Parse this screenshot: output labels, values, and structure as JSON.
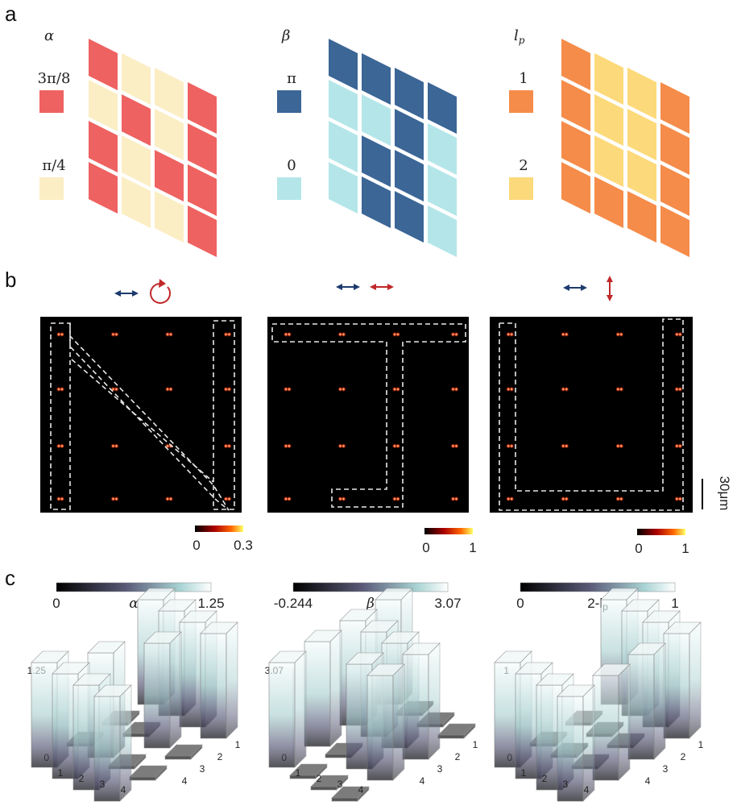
{
  "panel_a": {
    "letter": "a",
    "grids": [
      {
        "symbol": "α",
        "legend": [
          {
            "label": "3π/8",
            "color": "#ee6261"
          },
          {
            "label": "π/4",
            "color": "#fbeec4"
          }
        ],
        "matrix": [
          [
            0,
            1,
            1,
            0
          ],
          [
            1,
            0,
            1,
            0
          ],
          [
            0,
            1,
            0,
            0
          ],
          [
            0,
            1,
            1,
            0
          ]
        ]
      },
      {
        "symbol": "β",
        "legend": [
          {
            "label": "π",
            "color": "#3b6696"
          },
          {
            "label": "0",
            "color": "#b4e6e9"
          }
        ],
        "matrix": [
          [
            0,
            0,
            0,
            0
          ],
          [
            1,
            1,
            0,
            1
          ],
          [
            1,
            0,
            0,
            1
          ],
          [
            1,
            0,
            0,
            1
          ]
        ]
      },
      {
        "symbol": "lp",
        "legend": [
          {
            "label": "1",
            "color": "#f58c4a"
          },
          {
            "label": "2",
            "color": "#fcd97a"
          }
        ],
        "matrix": [
          [
            0,
            1,
            1,
            0
          ],
          [
            0,
            1,
            1,
            0
          ],
          [
            0,
            1,
            1,
            0
          ],
          [
            0,
            0,
            0,
            0
          ]
        ]
      }
    ]
  },
  "panel_b": {
    "letter": "b",
    "scalebar_label": "30μm",
    "colorbars": [
      {
        "min": "0",
        "max": "0.3"
      },
      {
        "min": "0",
        "max": "1"
      },
      {
        "min": "0",
        "max": "1"
      }
    ],
    "polarization_icons": [
      "double-arrow-blue circular-red",
      "double-arrow-blue double-arrow-red",
      "double-arrow-blue vertical-arrow-red"
    ]
  },
  "panel_c": {
    "letter": "c",
    "charts": [
      {
        "colorbar_min": "0",
        "symbol": "α",
        "colorbar_max": "1.25",
        "ztick": "1.25",
        "zzero": "0",
        "heights": [
          [
            1,
            0,
            0,
            1
          ],
          [
            1,
            1,
            0,
            1
          ],
          [
            1,
            0,
            1,
            1
          ],
          [
            1,
            0,
            0,
            1
          ]
        ]
      },
      {
        "colorbar_min": "-0.244",
        "symbol": "β",
        "colorbar_max": "3.07",
        "ztick": "3.07",
        "zzero": "0",
        "heights": [
          [
            1,
            1,
            1,
            1
          ],
          [
            0,
            0,
            1,
            0
          ],
          [
            0,
            1,
            1,
            0
          ],
          [
            0,
            1,
            1,
            0
          ]
        ]
      },
      {
        "colorbar_min": "0",
        "symbol": "2-lp",
        "colorbar_max": "1",
        "ztick": "1",
        "zzero": "0",
        "heights": [
          [
            1,
            0,
            0,
            1
          ],
          [
            1,
            0,
            0,
            1
          ],
          [
            1,
            0,
            0,
            1
          ],
          [
            1,
            1,
            1,
            1
          ]
        ]
      }
    ],
    "axis_ticks": [
      "1",
      "2",
      "3",
      "4"
    ]
  }
}
